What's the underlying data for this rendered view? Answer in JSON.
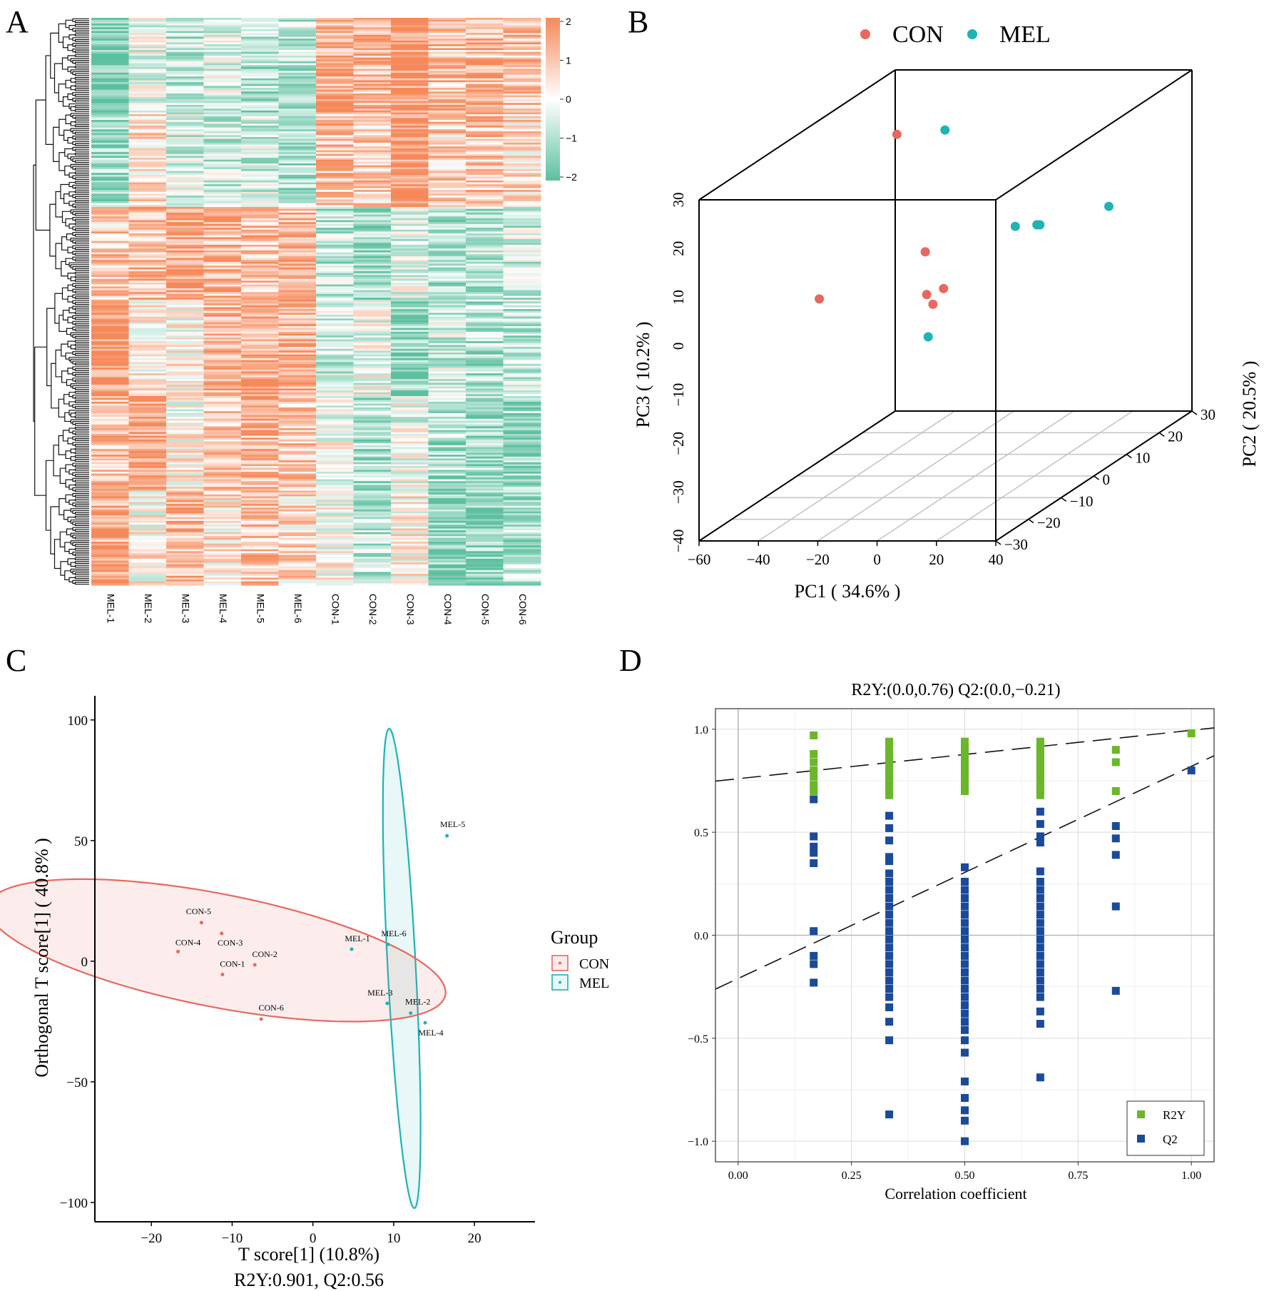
{
  "figure": {
    "panel_labels": [
      "A",
      "B",
      "C",
      "D"
    ]
  },
  "chart_data": [
    {
      "panel": "A",
      "type": "heatmap",
      "columns": [
        "MEL-1",
        "MEL-2",
        "MEL-3",
        "MEL-4",
        "MEL-5",
        "MEL-6",
        "CON-1",
        "CON-2",
        "CON-3",
        "CON-4",
        "CON-5",
        "CON-6"
      ],
      "scale_ticks": [
        "2",
        "1",
        "0",
        "−1",
        "−2"
      ],
      "scale_range": [
        -2,
        2
      ],
      "colors": {
        "low": "#5cc0a0",
        "mid": "#ffffff",
        "high": "#f6895a"
      },
      "row_count": 300,
      "cluster_pattern": [
        [
          -0.9,
          -0.1,
          -0.4,
          -0.2,
          -0.5,
          -0.4,
          0.7,
          0.6,
          0.9,
          0.5,
          0.6,
          0.5
        ],
        [
          -0.6,
          0.3,
          -0.2,
          -0.3,
          -0.3,
          -0.5,
          0.5,
          0.4,
          1.0,
          0.4,
          0.5,
          0.3
        ],
        [
          0.4,
          0.5,
          0.8,
          0.6,
          0.5,
          0.6,
          -0.4,
          -0.6,
          -0.2,
          -0.5,
          -0.4,
          -0.3
        ],
        [
          0.9,
          0.2,
          0.1,
          0.6,
          0.7,
          0.6,
          -0.3,
          -0.1,
          -0.7,
          -0.3,
          -0.5,
          -0.4
        ],
        [
          0.5,
          0.9,
          0.1,
          0.5,
          0.6,
          0.4,
          0.0,
          -0.5,
          -0.1,
          -0.5,
          -0.6,
          -0.6
        ],
        [
          0.7,
          0.1,
          0.6,
          0.2,
          0.5,
          0.3,
          0.0,
          -0.4,
          0.1,
          -0.7,
          -0.7,
          -0.5
        ]
      ]
    },
    {
      "panel": "B",
      "type": "scatter",
      "subtype": "3d-pca",
      "legend": [
        {
          "name": "CON",
          "color": "#e8685f"
        },
        {
          "name": "MEL",
          "color": "#1fb3b3"
        }
      ],
      "xlabel": "PC1 ( 34.6% )",
      "ylabel": "PC2 ( 20.5% )",
      "zlabel": "PC3 ( 10.2% )",
      "x_ticks": [
        "−60",
        "−40",
        "−20",
        "0",
        "20",
        "40"
      ],
      "y_ticks": [
        "−30",
        "−20",
        "−10",
        "0",
        "10",
        "20",
        "30"
      ],
      "z_ticks": [
        "−40",
        "−30",
        "−20",
        "−10",
        "0",
        "10",
        "20",
        "30"
      ],
      "xlim": [
        -60,
        40
      ],
      "ylim": [
        -30,
        30
      ],
      "zlim": [
        -40,
        30
      ],
      "series": [
        {
          "name": "CON",
          "points": [
            {
              "x": -44,
              "y": 16,
              "z": 23
            },
            {
              "x": -36,
              "y": -15,
              "z": 3
            },
            {
              "x": 3,
              "y": -18,
              "z": 14
            },
            {
              "x": -2,
              "y": -13,
              "z": 3
            },
            {
              "x": 10,
              "y": -22,
              "z": 5
            },
            {
              "x": 18,
              "y": -26,
              "z": 10
            }
          ]
        },
        {
          "name": "MEL",
          "points": [
            {
              "x": -30,
              "y": 18,
              "z": 23
            },
            {
              "x": 12,
              "y": 30,
              "z": 2
            },
            {
              "x": 8,
              "y": 5,
              "z": 9
            },
            {
              "x": 12,
              "y": 8,
              "z": 8
            },
            {
              "x": 13,
              "y": 8,
              "z": 8
            },
            {
              "x": 15,
              "y": -28,
              "z": 1
            }
          ]
        }
      ]
    },
    {
      "panel": "C",
      "type": "scatter",
      "subtype": "opls-da-score",
      "xlabel": "T score[1] (10.8%)",
      "ylabel": "Orthogonal T score[1] ( 40.8% )",
      "caption": "R2Y:0.901,   Q2:0.56",
      "xlim": [
        -27,
        27.5
      ],
      "ylim": [
        -108,
        110
      ],
      "x_ticks": [
        -20,
        -10,
        0,
        10,
        20
      ],
      "y_ticks": [
        100,
        50,
        0,
        -50,
        -100
      ],
      "legend_title": "Group",
      "legend": [
        {
          "name": "CON",
          "color": "#e8685f"
        },
        {
          "name": "MEL",
          "color": "#1fb3b3"
        }
      ],
      "series": [
        {
          "name": "CON",
          "color": "#e8685f",
          "points": [
            {
              "label": "CON-5",
              "x": -13.8,
              "y": 16
            },
            {
              "label": "CON-3",
              "x": -11.3,
              "y": 11.5
            },
            {
              "label": "CON-4",
              "x": -16.7,
              "y": 4
            },
            {
              "label": "CON-2",
              "x": -7.2,
              "y": -1.5
            },
            {
              "label": "CON-1",
              "x": -11.2,
              "y": -5.5
            },
            {
              "label": "CON-6",
              "x": -6.4,
              "y": -24
            }
          ]
        },
        {
          "name": "MEL",
          "color": "#1fb3b3",
          "points": [
            {
              "label": "MEL-5",
              "x": 16.6,
              "y": 52
            },
            {
              "label": "MEL-1",
              "x": 4.8,
              "y": 5
            },
            {
              "label": "MEL-6",
              "x": 9.3,
              "y": 7
            },
            {
              "label": "MEL-3",
              "x": 9.2,
              "y": -17.5
            },
            {
              "label": "MEL-2",
              "x": 12.1,
              "y": -21.5
            },
            {
              "label": "MEL-4",
              "x": 13.9,
              "y": -25.5
            }
          ]
        }
      ],
      "ellipses": [
        {
          "group": "CON",
          "cx": -11.9,
          "cy": 4.5,
          "rx": 18.5,
          "ry": 36.5,
          "rotate_deg": -43
        },
        {
          "group": "MEL",
          "cx": 11,
          "cy": -3,
          "rx": 100,
          "ry": 13.3,
          "rotate_deg": -97
        }
      ]
    },
    {
      "panel": "D",
      "type": "scatter",
      "subtype": "permutation-test",
      "title": "R2Y:(0.0,0.76) Q2:(0.0,−0.21)",
      "xlabel": "Correlation coefficient",
      "xlim": [
        -0.05,
        1.05
      ],
      "ylim": [
        -1.1,
        1.1
      ],
      "x_ticks": [
        "0.00",
        "0.25",
        "0.50",
        "0.75",
        "1.00"
      ],
      "y_ticks": [
        "1.0",
        "0.5",
        "0.0",
        "−0.5",
        "−1.0"
      ],
      "legend": [
        {
          "name": "R2Y",
          "color": "#6ab72a"
        },
        {
          "name": "Q2",
          "color": "#1a4a9a"
        }
      ],
      "lines": [
        {
          "name": "R2Y",
          "intercept": 0.76,
          "slope": 0.235
        },
        {
          "name": "Q2",
          "intercept": -0.21,
          "slope": 1.03
        }
      ],
      "series": [
        {
          "name": "R2Y",
          "points_by_x": {
            "0.1667": [
              0.97,
              0.88,
              0.84,
              0.8,
              0.77,
              0.73,
              0.7
            ],
            "0.3333": [
              0.94,
              0.92,
              0.9,
              0.88,
              0.86,
              0.84,
              0.82,
              0.8,
              0.78,
              0.76,
              0.74,
              0.72,
              0.7,
              0.68
            ],
            "0.5": [
              0.94,
              0.92,
              0.9,
              0.88,
              0.86,
              0.84,
              0.82,
              0.8,
              0.78,
              0.76,
              0.74,
              0.72,
              0.7
            ],
            "0.6667": [
              0.94,
              0.92,
              0.9,
              0.88,
              0.86,
              0.84,
              0.82,
              0.8,
              0.78,
              0.76,
              0.74,
              0.72,
              0.7,
              0.68
            ],
            "0.8333": [
              0.9,
              0.84,
              0.7
            ],
            "1.0": [
              0.98
            ]
          }
        },
        {
          "name": "Q2",
          "points_by_x": {
            "0.1667": [
              0.66,
              0.48,
              0.43,
              0.4,
              0.35,
              0.02,
              -0.1,
              -0.14,
              -0.23
            ],
            "0.3333": [
              0.58,
              0.52,
              0.46,
              0.38,
              0.36,
              0.3,
              0.26,
              0.22,
              0.18,
              0.14,
              0.1,
              0.06,
              0.02,
              -0.02,
              -0.06,
              -0.1,
              -0.14,
              -0.18,
              -0.22,
              -0.26,
              -0.3,
              -0.35,
              -0.42,
              -0.51,
              -0.87
            ],
            "0.5": [
              0.33,
              0.26,
              0.22,
              0.18,
              0.14,
              0.1,
              0.06,
              0.02,
              -0.02,
              -0.06,
              -0.1,
              -0.14,
              -0.18,
              -0.22,
              -0.26,
              -0.3,
              -0.34,
              -0.38,
              -0.42,
              -0.46,
              -0.51,
              -0.57,
              -0.71,
              -0.79,
              -0.85,
              -0.9,
              -1.0
            ],
            "0.6667": [
              0.6,
              0.54,
              0.48,
              0.45,
              0.31,
              0.26,
              0.22,
              0.18,
              0.14,
              0.1,
              0.06,
              0.02,
              -0.02,
              -0.06,
              -0.1,
              -0.14,
              -0.18,
              -0.22,
              -0.26,
              -0.3,
              -0.37,
              -0.43,
              -0.69
            ],
            "0.8333": [
              0.53,
              0.47,
              0.39,
              0.14,
              -0.27
            ],
            "1.0": [
              0.8
            ]
          }
        }
      ]
    }
  ]
}
